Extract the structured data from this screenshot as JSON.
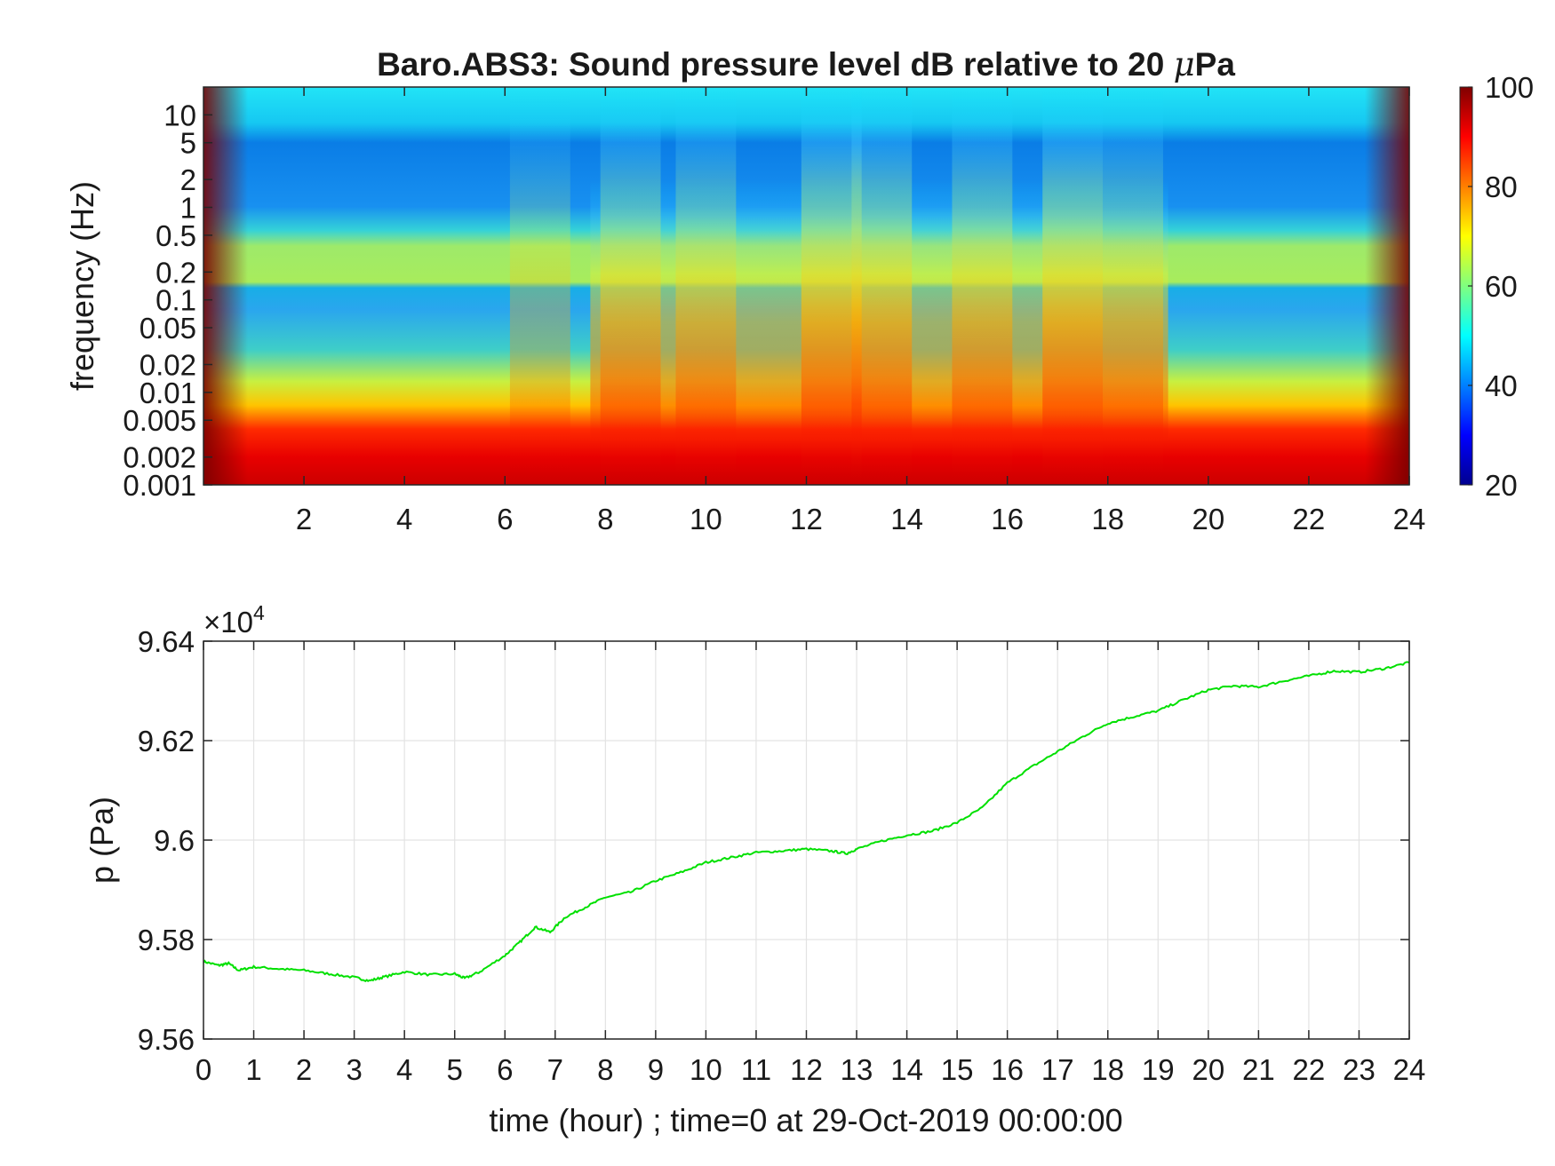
{
  "chart_data": [
    {
      "type": "heatmap",
      "title": "Baro.ABS3: Sound pressure level dB relative to 20 μPa",
      "title_main": "Baro.ABS3: Sound pressure level dB relative to 20 ",
      "title_mu": "μ",
      "title_end": "Pa",
      "ylabel": "frequency (Hz)",
      "xlabel": "",
      "xlim": [
        0,
        24
      ],
      "ylim": [
        0.001,
        20
      ],
      "yscale": "log",
      "x_ticks": [
        "2",
        "4",
        "6",
        "8",
        "10",
        "12",
        "14",
        "16",
        "18",
        "20",
        "22",
        "24"
      ],
      "y_ticks": [
        "0.001",
        "0.002",
        "0.005",
        "0.01",
        "0.02",
        "0.05",
        "0.1",
        "0.2",
        "0.5",
        "1",
        "2",
        "5",
        "10"
      ],
      "colorbar": {
        "range": [
          20,
          100
        ],
        "ticks": [
          "20",
          "40",
          "60",
          "80",
          "100"
        ],
        "colormap": "jet"
      },
      "spl_bands": [
        {
          "f_low": 0.001,
          "f_high": 0.003,
          "level_db": 93
        },
        {
          "f_low": 0.003,
          "f_high": 0.007,
          "level_db": 78
        },
        {
          "f_low": 0.007,
          "f_high": 0.12,
          "level_db": 48
        },
        {
          "f_low": 0.12,
          "f_high": 0.3,
          "level_db": 63
        },
        {
          "f_low": 0.3,
          "f_high": 5,
          "level_db": 45
        },
        {
          "f_low": 5,
          "f_high": 20,
          "level_db": 55
        }
      ],
      "activity_hours": [
        {
          "hour": 6.7,
          "level_db": 70
        },
        {
          "hour": 8.5,
          "level_db": 80
        },
        {
          "hour": 10,
          "level_db": 78
        },
        {
          "hour": 12.5,
          "level_db": 88
        },
        {
          "hour": 13.5,
          "level_db": 84
        },
        {
          "hour": 15.5,
          "level_db": 80
        },
        {
          "hour": 17.3,
          "level_db": 88
        },
        {
          "hour": 18.5,
          "level_db": 76
        }
      ]
    },
    {
      "type": "line",
      "title": "",
      "xlabel": "time (hour) ; time=0 at 29-Oct-2019 00:00:00",
      "ylabel": "p (Pa)",
      "y_exponent_base": "×10",
      "y_exponent_power": "4",
      "xlim": [
        0,
        24
      ],
      "ylim": [
        9.56,
        9.64
      ],
      "grid": true,
      "line_color": "#00e000",
      "x_ticks": [
        "0",
        "1",
        "2",
        "3",
        "4",
        "5",
        "6",
        "7",
        "8",
        "9",
        "10",
        "11",
        "12",
        "13",
        "14",
        "15",
        "16",
        "17",
        "18",
        "19",
        "20",
        "21",
        "22",
        "23",
        "24"
      ],
      "y_ticks": [
        "9.56",
        "9.58",
        "9.6",
        "9.62",
        "9.64"
      ],
      "series": [
        {
          "x": [
            0,
            0.3,
            0.5,
            0.7,
            1,
            1.5,
            2,
            2.5,
            3,
            3.3,
            3.6,
            4,
            4.5,
            5,
            5.2,
            5.5,
            6,
            6.3,
            6.6,
            6.9,
            7.2,
            7.6,
            8,
            8.5,
            9,
            9.5,
            10,
            10.5,
            11,
            11.5,
            12,
            12.5,
            12.8,
            13,
            13.5,
            14,
            14.5,
            15,
            15.5,
            16,
            16.5,
            17,
            17.5,
            18,
            18.5,
            19,
            19.5,
            20,
            20.5,
            21,
            21.5,
            22,
            22.5,
            23,
            23.5,
            24
          ],
          "y": [
            9.5756,
            9.5748,
            9.5752,
            9.5738,
            9.5745,
            9.5741,
            9.5738,
            9.5731,
            9.5724,
            9.5717,
            9.5725,
            9.5735,
            9.5729,
            9.5731,
            9.5722,
            9.5735,
            9.5768,
            9.5795,
            9.5825,
            9.5815,
            9.5845,
            9.5865,
            9.5885,
            9.5895,
            9.5918,
            9.5935,
            9.5955,
            9.5965,
            9.5975,
            9.5978,
            9.5982,
            9.5978,
            9.5973,
            9.5982,
            9.5998,
            9.601,
            9.6018,
            9.6035,
            9.6065,
            9.6115,
            9.6148,
            9.6178,
            9.6208,
            9.6235,
            9.6248,
            9.626,
            9.6282,
            9.6302,
            9.631,
            9.6308,
            9.632,
            9.633,
            9.634,
            9.6338,
            9.6345,
            9.6357
          ]
        }
      ]
    }
  ]
}
